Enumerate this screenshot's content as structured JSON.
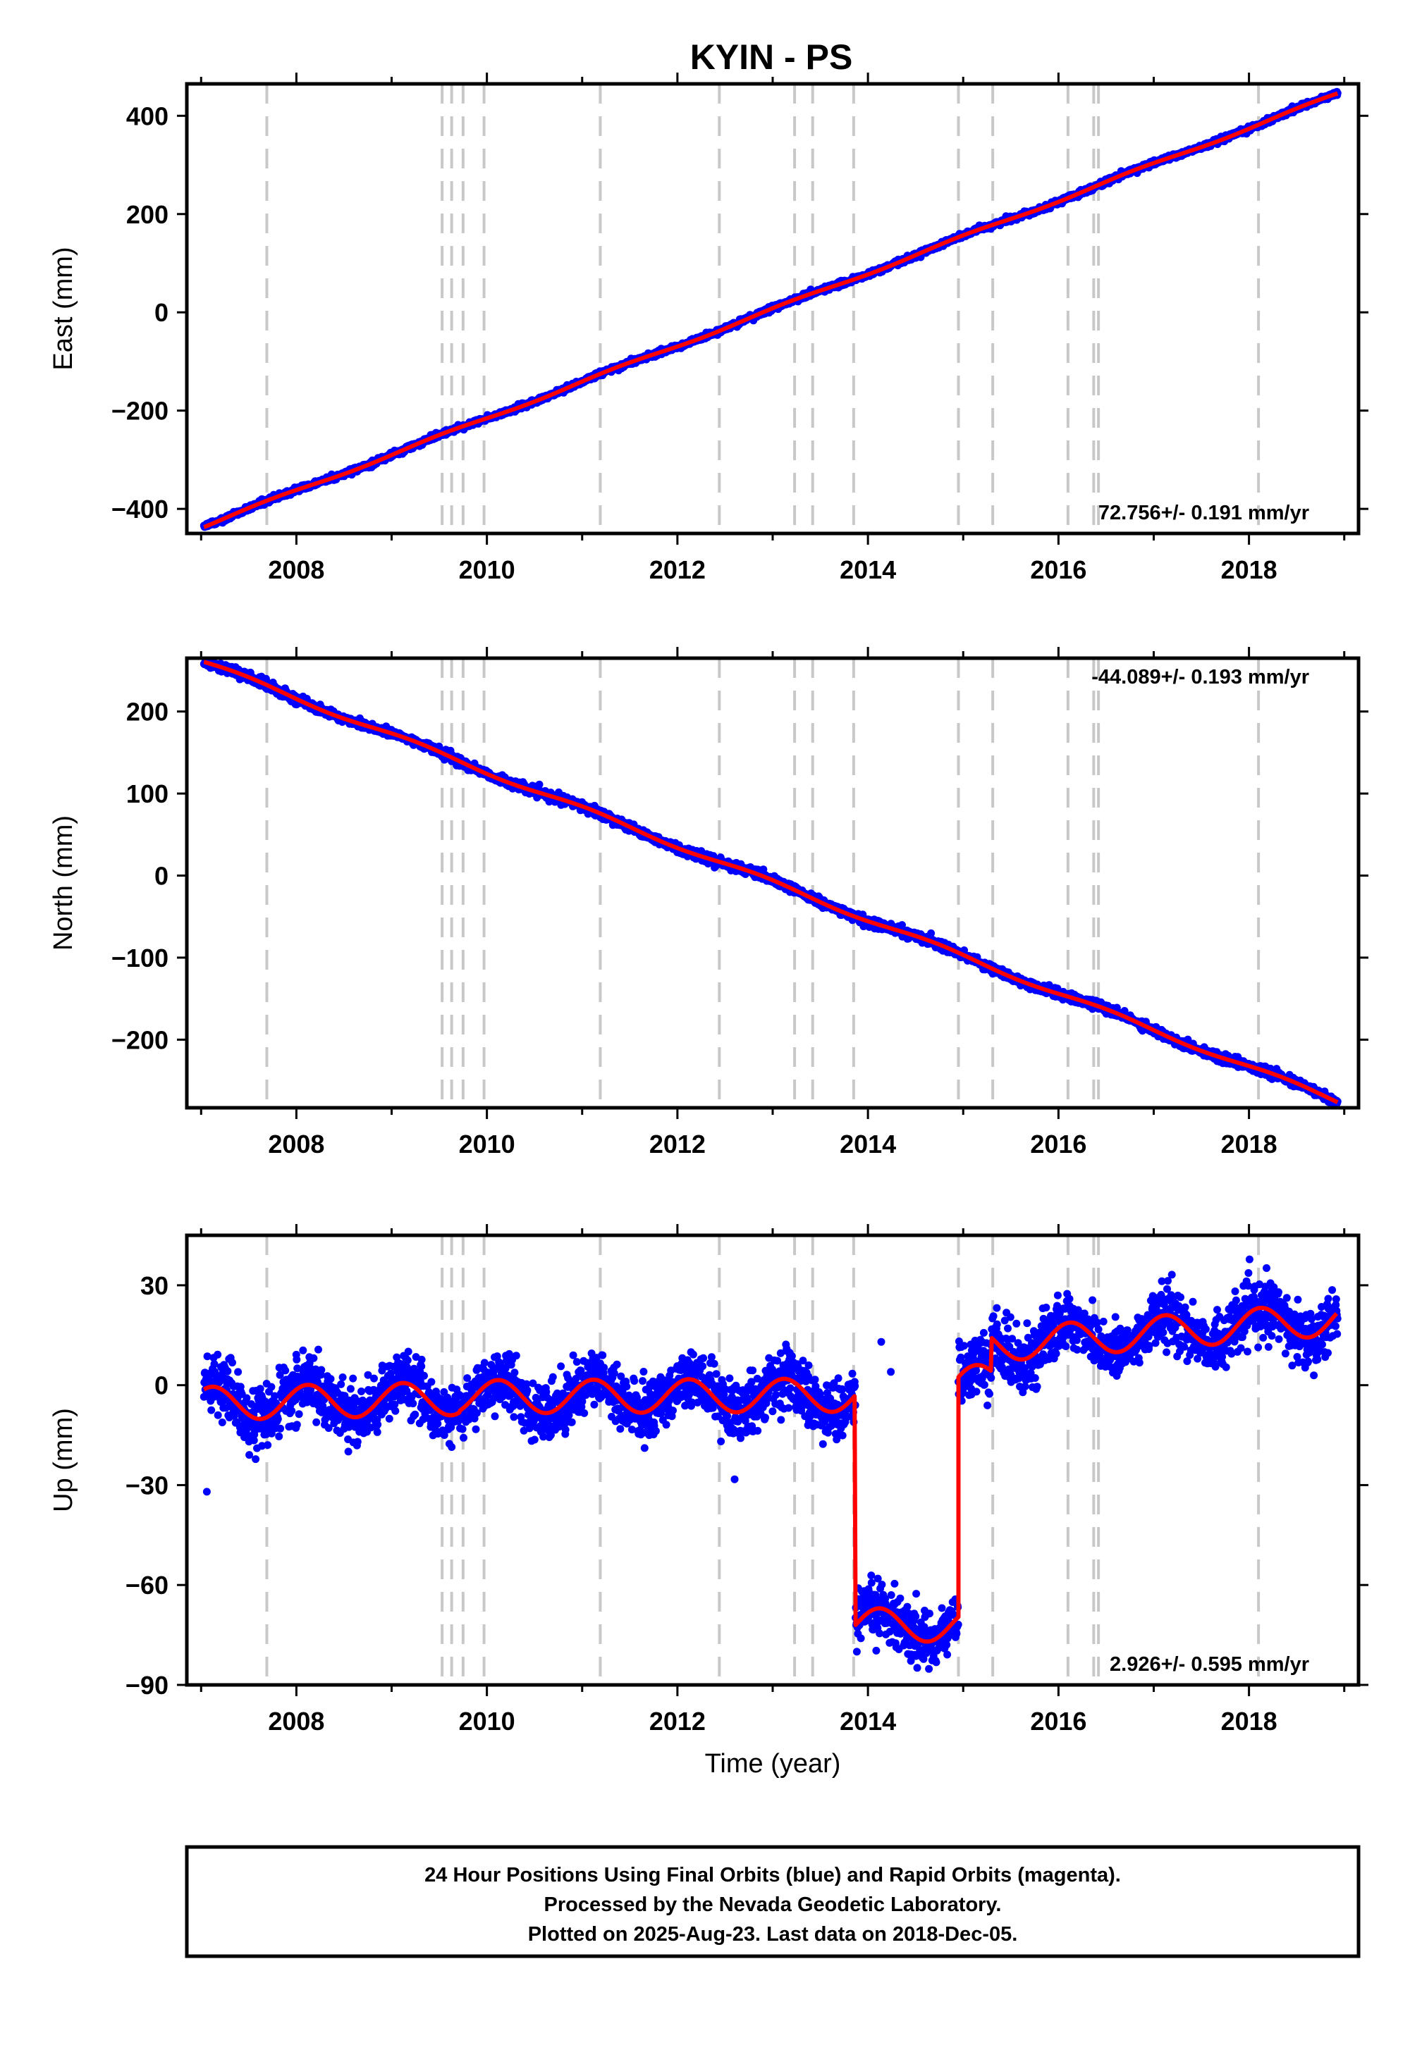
{
  "chart_data": [
    {
      "type": "scatter",
      "panel": "east",
      "title": "KYIN - PS",
      "ylabel": "East (mm)",
      "xlabel": "",
      "xlim": [
        2006.85,
        2019.15
      ],
      "ylim": [
        -450,
        465
      ],
      "yticks": [
        -400,
        -200,
        0,
        200,
        400
      ],
      "xticks": [
        2008,
        2010,
        2012,
        2014,
        2016,
        2018
      ],
      "rate_label": "72.756+/- 0.191 mm/yr",
      "rate_position": "bottom-right",
      "series": [
        {
          "model": "linear",
          "start": {
            "x": 2007.03,
            "y": -435
          },
          "end": {
            "x": 2018.93,
            "y": 444
          },
          "rate": 72.756
        }
      ]
    },
    {
      "type": "scatter",
      "panel": "north",
      "title": "",
      "ylabel": "North (mm)",
      "xlabel": "",
      "xlim": [
        2006.85,
        2019.15
      ],
      "ylim": [
        -283,
        265
      ],
      "yticks": [
        -200,
        -100,
        0,
        100,
        200
      ],
      "xticks": [
        2008,
        2010,
        2012,
        2014,
        2016,
        2018
      ],
      "rate_label": "-44.089+/- 0.193 mm/yr",
      "rate_position": "top-right",
      "series": [
        {
          "model": "linear",
          "start": {
            "x": 2007.03,
            "y": 260
          },
          "end": {
            "x": 2018.93,
            "y": -275
          },
          "rate": -44.089
        }
      ]
    },
    {
      "type": "scatter",
      "panel": "up",
      "title": "",
      "ylabel": "Up (mm)",
      "xlabel": "Time (year)",
      "xlim": [
        2006.85,
        2019.15
      ],
      "ylim": [
        -90,
        45
      ],
      "yticks": [
        -90,
        -60,
        -30,
        0,
        30
      ],
      "xticks": [
        2008,
        2010,
        2012,
        2014,
        2016,
        2018
      ],
      "rate_label": "2.926+/- 0.595 mm/yr",
      "rate_position": "bottom-right",
      "seasonal_amplitude": 5,
      "segments": [
        {
          "x0": 2007.03,
          "x1": 2009.72,
          "offset_start": -5.5,
          "offset_end": -4.0
        },
        {
          "x0": 2009.72,
          "x1": 2013.87,
          "offset_start": -3.5,
          "offset_end": -3.0
        },
        {
          "x0": 2013.87,
          "x1": 2014.95,
          "offset_start": -72.0,
          "offset_end": -72.0
        },
        {
          "x0": 2014.95,
          "x1": 2015.3,
          "offset_start": 0.0,
          "offset_end": 2.0
        },
        {
          "x0": 2015.3,
          "x1": 2018.93,
          "offset_start": 12.0,
          "offset_end": 20.0
        }
      ]
    }
  ],
  "event_lines": [
    2007.69,
    2009.53,
    2009.63,
    2009.75,
    2009.97,
    2011.19,
    2012.44,
    2013.23,
    2013.42,
    2013.85,
    2014.95,
    2015.31,
    2016.1,
    2016.37,
    2016.42,
    2018.1
  ],
  "colors": {
    "data_points": "#0000ff",
    "model_line": "#ff0000",
    "event_line": "#c8c8c8",
    "axes": "#000000"
  },
  "footer": {
    "line1": "24 Hour Positions Using Final Orbits (blue) and Rapid Orbits (magenta).",
    "line2": "Processed by the Nevada Geodetic Laboratory.",
    "line3": "Plotted on 2025-Aug-23. Last data on 2018-Dec-05."
  }
}
